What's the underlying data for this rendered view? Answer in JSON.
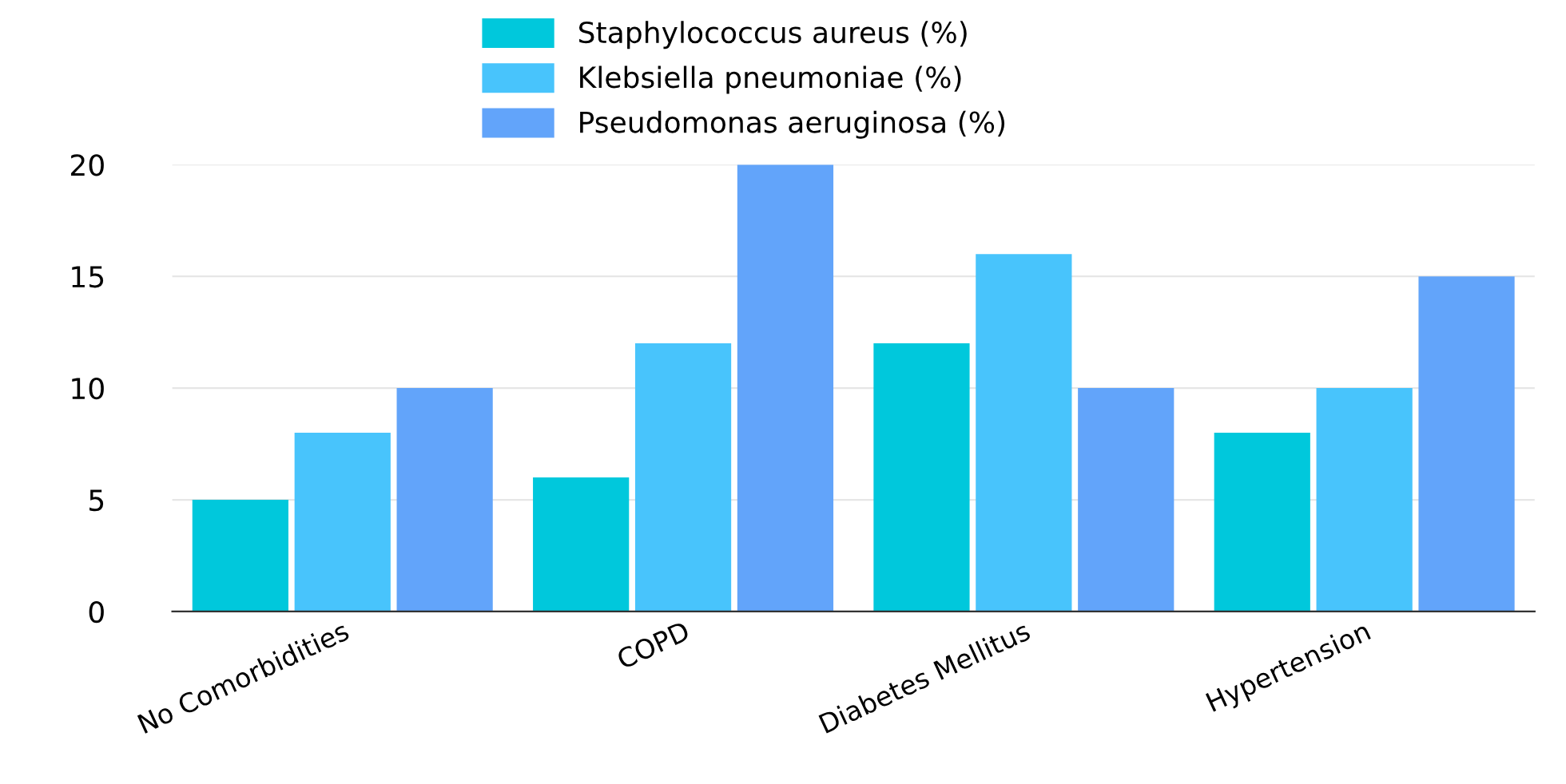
{
  "chart_data": {
    "type": "bar",
    "categories": [
      "No Comorbidities",
      "COPD",
      "Diabetes Mellitus",
      "Hypertension"
    ],
    "series": [
      {
        "name": "Staphylococcus aureus (%)",
        "color": "#00c8dc",
        "values": [
          5,
          6,
          12,
          8
        ]
      },
      {
        "name": "Klebsiella pneumoniae (%)",
        "color": "#48c4fc",
        "values": [
          8,
          12,
          16,
          10
        ]
      },
      {
        "name": "Pseudomonas aeruginosa (%)",
        "color": "#62a4fa",
        "values": [
          10,
          20,
          10,
          15
        ]
      }
    ],
    "ylim": [
      0,
      20
    ],
    "yticks": [
      0,
      5,
      10,
      15,
      20
    ],
    "grid": "y",
    "legend": "top"
  }
}
